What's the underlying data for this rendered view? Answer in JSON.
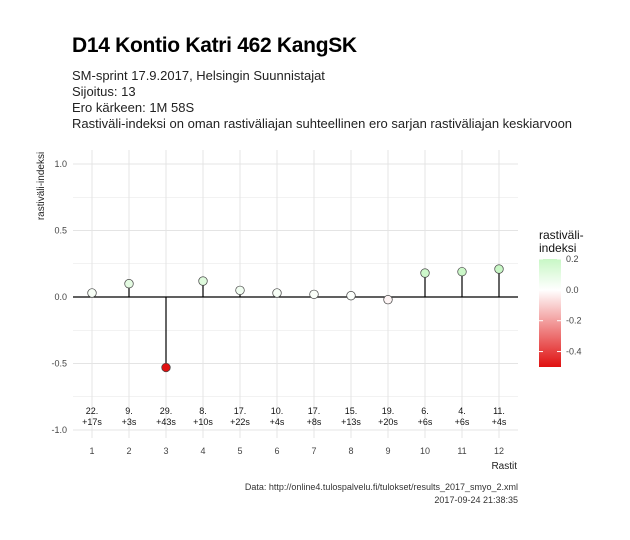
{
  "title": "D14 Kontio Katri 462 KangSK",
  "subtitle_lines": [
    "SM-sprint 17.9.2017, Helsingin Suunnistajat",
    "Sijoitus: 13",
    "Ero kärkeen: 1M 58S",
    "Rastiväli-indeksi on oman rastiväliajan suhteellinen ero sarjan rastiväliajan keskiarvoon"
  ],
  "caption": {
    "source": "Data: http://online4.tulospalvelu.fi/tulokset/results_2017_smyo_2.xml",
    "timestamp": "2017-09-24 21:38:35"
  },
  "colors": {
    "positive": "#c8f7c5",
    "neutral": "#ffffff",
    "negative": "#e01010",
    "grid": "#e4e4e4",
    "baseline": "#000000"
  },
  "chart_data": {
    "type": "lollipop",
    "xlabel": "Rastit",
    "ylabel": "rastiväli-indeksi",
    "ylim": [
      -1.0,
      1.0
    ],
    "yticks": [
      -1.0,
      -0.5,
      0.0,
      0.5,
      1.0
    ],
    "ytick_labels": [
      "-1.0",
      "-0.5",
      "0.0",
      "0.5",
      "1.0"
    ],
    "x": [
      1,
      2,
      3,
      4,
      5,
      6,
      7,
      8,
      9,
      10,
      11,
      12
    ],
    "values": [
      0.03,
      0.1,
      -0.53,
      0.12,
      0.05,
      0.03,
      0.02,
      0.01,
      -0.02,
      0.18,
      0.19,
      0.21
    ],
    "annotations": [
      [
        "22.",
        "+17s"
      ],
      [
        "9.",
        "+3s"
      ],
      [
        "29.",
        "+43s"
      ],
      [
        "8.",
        "+10s"
      ],
      [
        "17.",
        "+22s"
      ],
      [
        "10.",
        "+4s"
      ],
      [
        "17.",
        "+8s"
      ],
      [
        "15.",
        "+13s"
      ],
      [
        "19.",
        "+20s"
      ],
      [
        "6.",
        "+6s"
      ],
      [
        "4.",
        "+6s"
      ],
      [
        "11.",
        "+4s"
      ]
    ],
    "grid": true,
    "legend": {
      "title_lines": [
        "rastiväli-",
        "indeksi"
      ],
      "placement": "right",
      "range": [
        -0.5,
        0.2
      ],
      "ticks": [
        0.2,
        0.0,
        -0.2,
        -0.4
      ],
      "tick_labels": [
        "0.2",
        "0.0",
        "-0.2",
        "-0.4"
      ]
    }
  }
}
